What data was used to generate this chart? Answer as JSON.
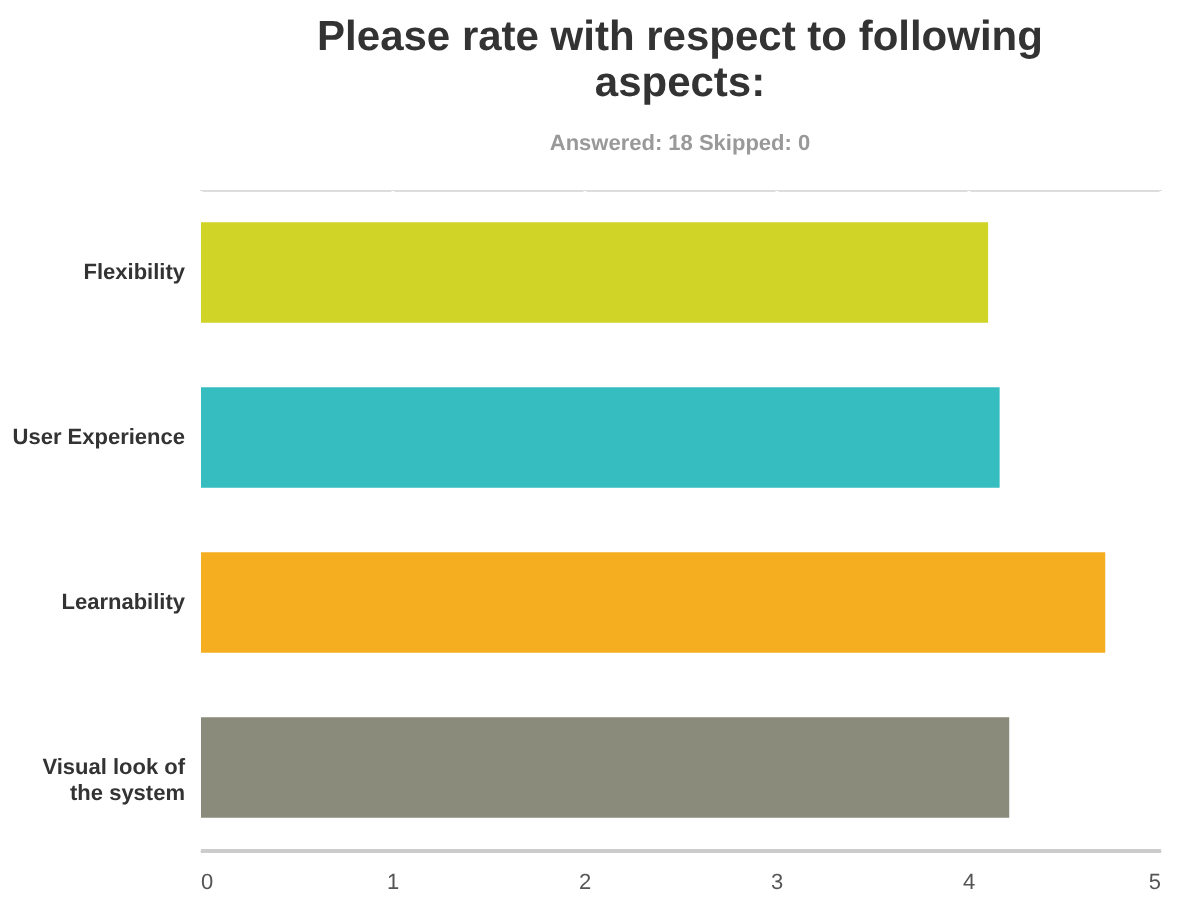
{
  "chart_data": {
    "type": "bar",
    "orientation": "horizontal",
    "title": [
      "Please rate with respect to following",
      "aspects:"
    ],
    "subtitle": "Answered: 18    Skipped: 0",
    "categories": [
      "Flexibility",
      "User Experience",
      "Learnability",
      "Visual look of the system"
    ],
    "values": [
      4.11,
      4.17,
      4.72,
      4.22
    ],
    "colors": [
      "#cfd427",
      "#35bdbf",
      "#f5ae20",
      "#8a8b7a"
    ],
    "xlim": [
      0,
      5
    ],
    "xticks": [
      0,
      1,
      2,
      3,
      4,
      5
    ],
    "grid": "x"
  }
}
